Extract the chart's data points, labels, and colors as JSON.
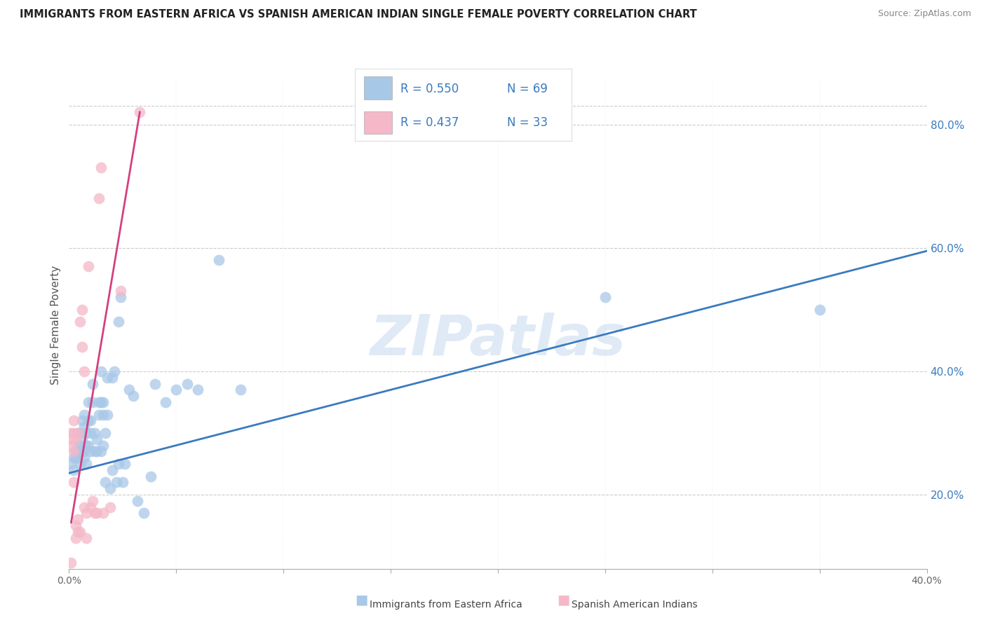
{
  "title": "IMMIGRANTS FROM EASTERN AFRICA VS SPANISH AMERICAN INDIAN SINGLE FEMALE POVERTY CORRELATION CHART",
  "source": "Source: ZipAtlas.com",
  "ylabel": "Single Female Poverty",
  "legend_blue_r": "R = 0.550",
  "legend_blue_n": "N = 69",
  "legend_pink_r": "R = 0.437",
  "legend_pink_n": "N = 33",
  "legend_blue_label": "Immigrants from Eastern Africa",
  "legend_pink_label": "Spanish American Indians",
  "blue_color": "#a8c8e8",
  "pink_color": "#f4b8c8",
  "blue_line_color": "#3a7abf",
  "pink_line_color": "#d44080",
  "label_color": "#3a7abf",
  "watermark": "ZIPatlas",
  "xlim": [
    0.0,
    0.4
  ],
  "ylim": [
    0.08,
    0.87
  ],
  "right_yticks": [
    0.2,
    0.4,
    0.6,
    0.8
  ],
  "right_yticklabels": [
    "20.0%",
    "40.0%",
    "60.0%",
    "80.0%"
  ],
  "xticks": [
    0.0,
    0.05,
    0.1,
    0.15,
    0.2,
    0.25,
    0.3,
    0.35,
    0.4
  ],
  "xticklabels": [
    "0.0%",
    "",
    "",
    "",
    "",
    "",
    "",
    "",
    "40.0%"
  ],
  "blue_scatter_x": [
    0.001,
    0.002,
    0.002,
    0.003,
    0.003,
    0.004,
    0.004,
    0.004,
    0.005,
    0.005,
    0.005,
    0.006,
    0.006,
    0.006,
    0.007,
    0.007,
    0.007,
    0.007,
    0.008,
    0.008,
    0.008,
    0.009,
    0.009,
    0.009,
    0.01,
    0.01,
    0.01,
    0.011,
    0.011,
    0.012,
    0.012,
    0.013,
    0.013,
    0.014,
    0.014,
    0.015,
    0.015,
    0.015,
    0.016,
    0.016,
    0.016,
    0.017,
    0.017,
    0.018,
    0.018,
    0.019,
    0.02,
    0.02,
    0.021,
    0.022,
    0.023,
    0.023,
    0.024,
    0.025,
    0.026,
    0.028,
    0.03,
    0.032,
    0.035,
    0.038,
    0.04,
    0.045,
    0.05,
    0.055,
    0.06,
    0.07,
    0.08,
    0.25,
    0.35
  ],
  "blue_scatter_y": [
    0.25,
    0.24,
    0.26,
    0.27,
    0.26,
    0.28,
    0.3,
    0.26,
    0.25,
    0.28,
    0.3,
    0.27,
    0.29,
    0.32,
    0.26,
    0.31,
    0.33,
    0.27,
    0.28,
    0.3,
    0.25,
    0.28,
    0.35,
    0.32,
    0.3,
    0.32,
    0.27,
    0.35,
    0.38,
    0.27,
    0.3,
    0.27,
    0.29,
    0.33,
    0.35,
    0.35,
    0.4,
    0.27,
    0.28,
    0.33,
    0.35,
    0.22,
    0.3,
    0.33,
    0.39,
    0.21,
    0.24,
    0.39,
    0.4,
    0.22,
    0.25,
    0.48,
    0.52,
    0.22,
    0.25,
    0.37,
    0.36,
    0.19,
    0.17,
    0.23,
    0.38,
    0.35,
    0.37,
    0.38,
    0.37,
    0.58,
    0.37,
    0.52,
    0.5
  ],
  "pink_scatter_x": [
    0.001,
    0.001,
    0.001,
    0.001,
    0.002,
    0.002,
    0.002,
    0.002,
    0.003,
    0.003,
    0.003,
    0.004,
    0.004,
    0.004,
    0.005,
    0.005,
    0.006,
    0.006,
    0.007,
    0.007,
    0.008,
    0.008,
    0.009,
    0.01,
    0.011,
    0.012,
    0.013,
    0.014,
    0.015,
    0.016,
    0.019,
    0.024,
    0.033
  ],
  "pink_scatter_y": [
    0.29,
    0.28,
    0.3,
    0.09,
    0.27,
    0.3,
    0.32,
    0.22,
    0.13,
    0.15,
    0.29,
    0.3,
    0.16,
    0.14,
    0.14,
    0.48,
    0.5,
    0.44,
    0.4,
    0.18,
    0.17,
    0.13,
    0.57,
    0.18,
    0.19,
    0.17,
    0.17,
    0.68,
    0.73,
    0.17,
    0.18,
    0.53,
    0.82
  ],
  "blue_trend_x": [
    0.0,
    0.4
  ],
  "blue_trend_y": [
    0.235,
    0.595
  ],
  "pink_trend_x": [
    0.001,
    0.033
  ],
  "pink_trend_y": [
    0.155,
    0.82
  ]
}
